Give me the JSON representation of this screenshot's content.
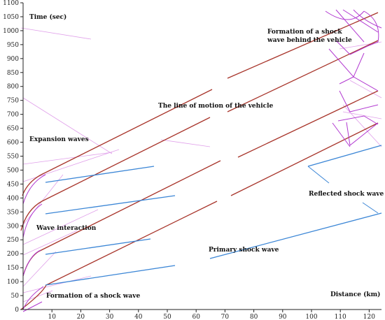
{
  "diagram": {
    "y_axis_title": "Time (sec)",
    "x_axis_title": "Distance (km)",
    "y_ticks": [
      "0",
      "50",
      "100",
      "150",
      "200",
      "250",
      "300",
      "350",
      "400",
      "450",
      "500",
      "550",
      "600",
      "650",
      "700",
      "750",
      "800",
      "850",
      "900",
      "950",
      "1000",
      "1050",
      "1100"
    ],
    "x_ticks": [
      "10",
      "20",
      "30",
      "40",
      "50",
      "60",
      "70",
      "80",
      "90",
      "100",
      "110",
      "120"
    ],
    "annotations": {
      "shock_behind_line1": "Formation of a shock",
      "shock_behind_line2": "wave behind the vehicle",
      "line_of_motion": "The line of motion of the vehicle",
      "expansion_waves": "Expansion waves",
      "reflected_shock": "Reflected shock wave",
      "wave_interaction": "Wave interaction",
      "primary_shock": "Primary shock wave",
      "formation_shock": "Formation of a shock wave"
    },
    "colors": {
      "vehicle_line": "#a8352b",
      "shock_wave": "#3b86d6",
      "expansion_wave": "#e0a0ea",
      "shock_formation": "#b23ad1"
    }
  }
}
